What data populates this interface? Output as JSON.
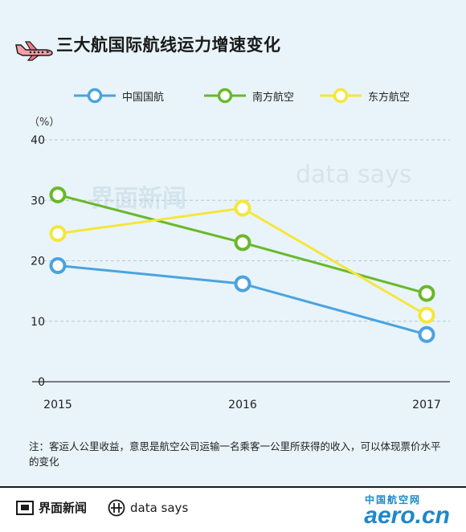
{
  "title": "三大航国际航线运力增速变化",
  "unit_label": "（%）",
  "note": "注：客运人公里收益，意思是航空公司运输一名乘客一公里所获得的收入，可以体现票价水平的变化",
  "watermarks": {
    "cn": "界面新闻",
    "en": "data says"
  },
  "footer": {
    "brand_cn": "界面新闻",
    "brand_en": "data says",
    "aero_cn": "中国航空网",
    "aero_en": "aero.cn"
  },
  "colors": {
    "air_china": "#4aa3e0",
    "china_southern": "#6ab82a",
    "china_eastern": "#f5e63a"
  },
  "chart_data": {
    "type": "line",
    "categories": [
      "2015",
      "2016",
      "2017"
    ],
    "series": [
      {
        "name": "中国国航",
        "color": "#4aa3e0",
        "values": [
          19.2,
          16.2,
          7.8
        ]
      },
      {
        "name": "南方航空",
        "color": "#6ab82a",
        "values": [
          30.9,
          23.0,
          14.6
        ]
      },
      {
        "name": "东方航空",
        "color": "#f5e63a",
        "values": [
          24.5,
          28.7,
          11.0
        ]
      }
    ],
    "ylim": [
      0,
      40
    ],
    "yticks": [
      0,
      10,
      20,
      30,
      40
    ],
    "grid": true,
    "legend": "top"
  }
}
